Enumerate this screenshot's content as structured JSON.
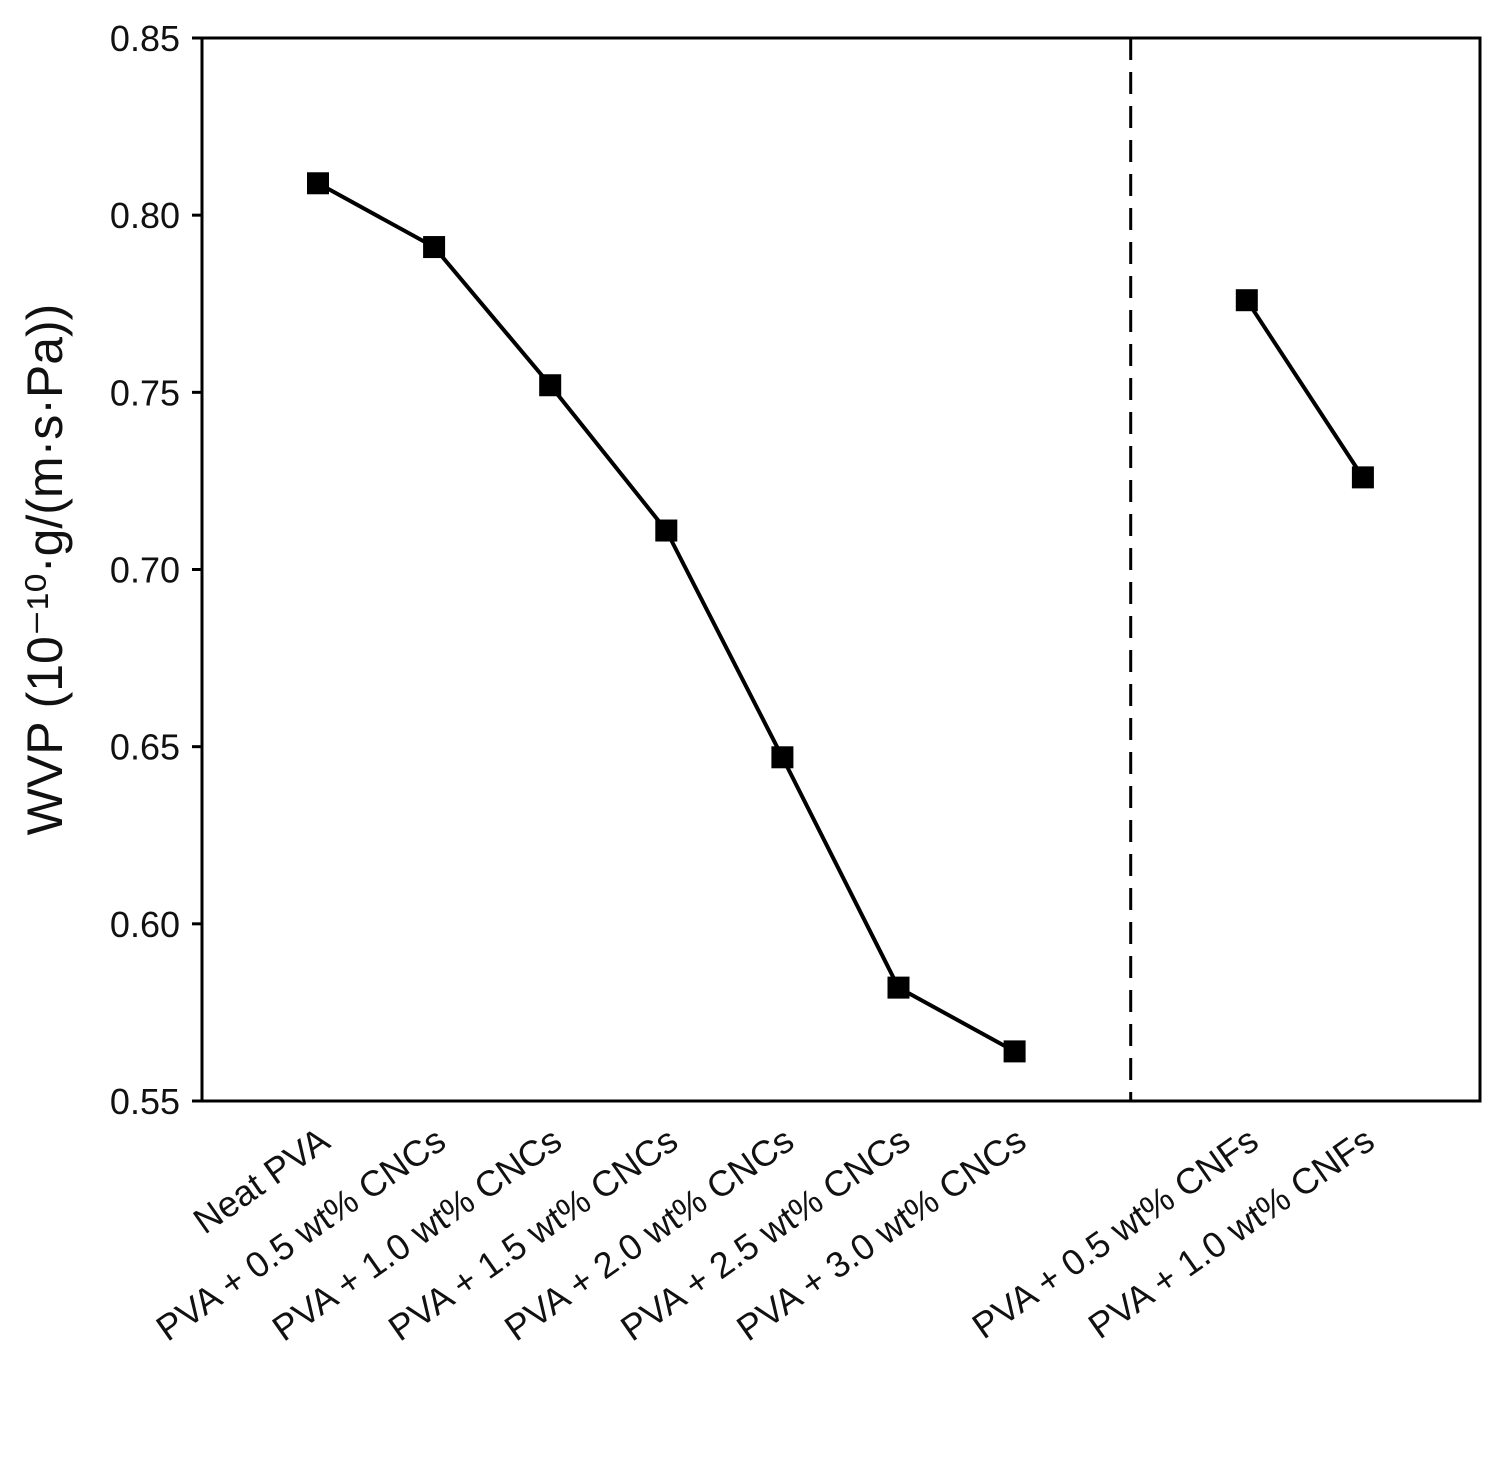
{
  "chart_data": {
    "type": "line",
    "ylabel": "WVP (10⁻¹⁰·g/(m·s·Pa))",
    "ylim": [
      0.55,
      0.85
    ],
    "yticks": [
      "0.55",
      "0.60",
      "0.65",
      "0.70",
      "0.75",
      "0.80",
      "0.85"
    ],
    "categories": [
      "Neat PVA",
      "PVA + 0.5 wt% CNCs",
      "PVA + 1.0 wt% CNCs",
      "PVA + 1.5 wt% CNCs",
      "PVA + 2.0 wt% CNCs",
      "PVA + 2.5 wt% CNCs",
      "PVA + 3.0 wt% CNCs",
      "",
      "PVA + 0.5 wt% CNFs",
      "PVA + 1.0 wt% CNFs"
    ],
    "series": [
      {
        "marker": "square",
        "color": "#000000",
        "points": [
          {
            "category": "Neat PVA",
            "value": 0.809
          },
          {
            "category": "PVA + 0.5 wt% CNCs",
            "value": 0.791
          },
          {
            "category": "PVA + 1.0 wt% CNCs",
            "value": 0.752
          },
          {
            "category": "PVA + 1.5 wt% CNCs",
            "value": 0.711
          },
          {
            "category": "PVA + 2.0 wt% CNCs",
            "value": 0.647
          },
          {
            "category": "PVA + 2.5 wt% CNCs",
            "value": 0.582
          },
          {
            "category": "PVA + 3.0 wt% CNCs",
            "value": 0.564
          }
        ]
      },
      {
        "marker": "square",
        "color": "#000000",
        "points": [
          {
            "category": "PVA + 0.5 wt% CNFs",
            "value": 0.776
          },
          {
            "category": "PVA + 1.0 wt% CNFs",
            "value": 0.726
          }
        ]
      }
    ],
    "separator": {
      "style": "dashed",
      "after_category_index": 7
    },
    "grid": false,
    "legend": "none"
  }
}
